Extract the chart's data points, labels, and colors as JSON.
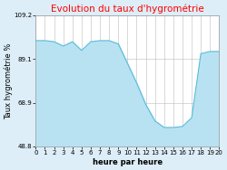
{
  "title": "Evolution du taux d'hygrométrie",
  "xlabel": "heure par heure",
  "ylabel": "Taux hygrométrie %",
  "ylim": [
    48.8,
    109.2
  ],
  "xlim": [
    0,
    20
  ],
  "yticks": [
    48.8,
    68.9,
    89.1,
    109.2
  ],
  "hours": [
    0,
    1,
    2,
    3,
    4,
    5,
    6,
    7,
    8,
    9,
    10,
    11,
    12,
    13,
    14,
    15,
    16,
    17,
    18,
    19,
    20
  ],
  "values": [
    97.5,
    97.5,
    97.0,
    95.0,
    97.0,
    93.0,
    97.0,
    97.5,
    97.5,
    96.0,
    87.0,
    78.0,
    68.0,
    60.5,
    57.5,
    57.5,
    58.0,
    62.0,
    91.5,
    92.5,
    92.5
  ],
  "line_color": "#5bbcda",
  "fill_color": "#b8e2f2",
  "title_color": "#ff0000",
  "bg_color": "#ddeef8",
  "plot_bg": "#ffffff",
  "grid_color": "#bbbbbb",
  "title_fontsize": 7.5,
  "label_fontsize": 6,
  "tick_fontsize": 5
}
